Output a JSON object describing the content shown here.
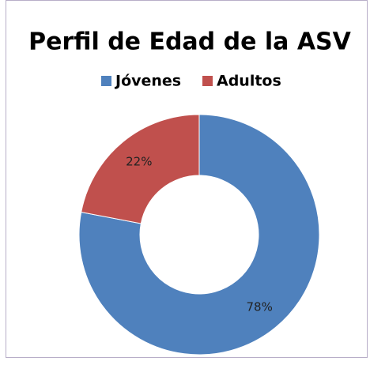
{
  "chart_data": {
    "type": "pie",
    "title": "Perfil de Edad de la ASV",
    "categories": [
      "Jóvenes",
      "Adultos"
    ],
    "values": [
      78,
      22
    ],
    "value_labels": [
      "78%",
      "22%"
    ],
    "colors": [
      "#4f81bd",
      "#c0504d"
    ],
    "legend": "top"
  }
}
